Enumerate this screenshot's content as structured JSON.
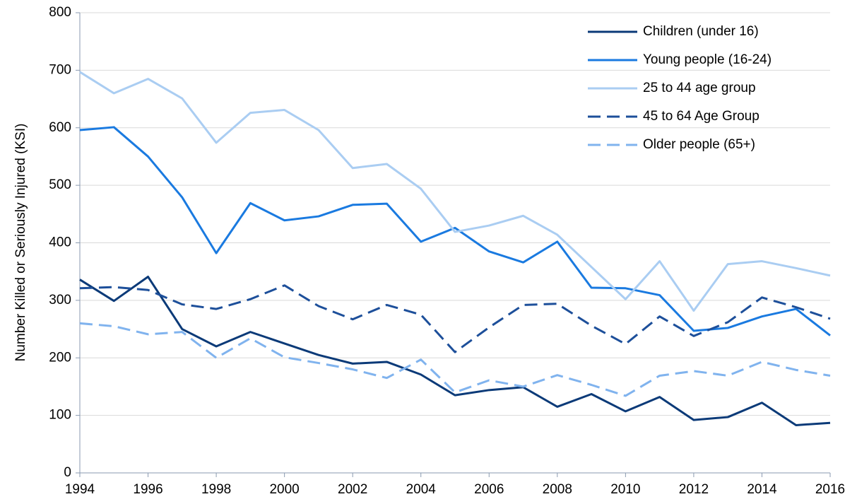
{
  "chart_data": {
    "type": "line",
    "y_label": "Number Killed or Seriously Injured (KSI)",
    "x": [
      1994,
      1995,
      1996,
      1997,
      1998,
      1999,
      2000,
      2001,
      2002,
      2003,
      2004,
      2005,
      2006,
      2007,
      2008,
      2009,
      2010,
      2011,
      2012,
      2013,
      2014,
      2015,
      2016
    ],
    "xlim": [
      1994,
      2016
    ],
    "xticks": [
      1994,
      1996,
      1998,
      2000,
      2002,
      2004,
      2006,
      2008,
      2010,
      2012,
      2014,
      2016
    ],
    "ylim": [
      0,
      800
    ],
    "yticks": [
      0,
      100,
      200,
      300,
      400,
      500,
      600,
      700,
      800
    ],
    "grid": true,
    "legend": "top-right",
    "series": [
      {
        "name": "Children (under 16)",
        "color": "#0b3a78",
        "dashed": false,
        "values": [
          336,
          299,
          341,
          250,
          220,
          245,
          225,
          205,
          190,
          193,
          171,
          135,
          144,
          149,
          115,
          137,
          107,
          132,
          92,
          97,
          122,
          83,
          87
        ]
      },
      {
        "name": "Young people (16-24)",
        "color": "#1a7ae0",
        "dashed": false,
        "values": [
          596,
          601,
          550,
          479,
          382,
          469,
          439,
          446,
          466,
          468,
          402,
          426,
          385,
          366,
          402,
          322,
          321,
          309,
          247,
          252,
          272,
          285,
          239
        ]
      },
      {
        "name": "25 to 44 age group",
        "color": "#aacdf2",
        "dashed": false,
        "values": [
          697,
          660,
          685,
          651,
          574,
          626,
          631,
          596,
          530,
          537,
          494,
          419,
          430,
          447,
          414,
          358,
          302,
          368,
          282,
          363,
          368,
          356,
          343
        ]
      },
      {
        "name": "45 to 64 Age Group",
        "color": "#1d4f9a",
        "dashed": true,
        "values": [
          321,
          323,
          318,
          293,
          285,
          302,
          326,
          290,
          267,
          292,
          275,
          210,
          253,
          292,
          294,
          256,
          224,
          272,
          238,
          262,
          305,
          288,
          268
        ]
      },
      {
        "name": "Older people (65+)",
        "color": "#80b3ee",
        "dashed": true,
        "values": [
          260,
          255,
          241,
          245,
          200,
          234,
          201,
          191,
          180,
          165,
          197,
          140,
          161,
          150,
          170,
          153,
          134,
          169,
          177,
          169,
          193,
          179,
          169
        ]
      }
    ]
  }
}
